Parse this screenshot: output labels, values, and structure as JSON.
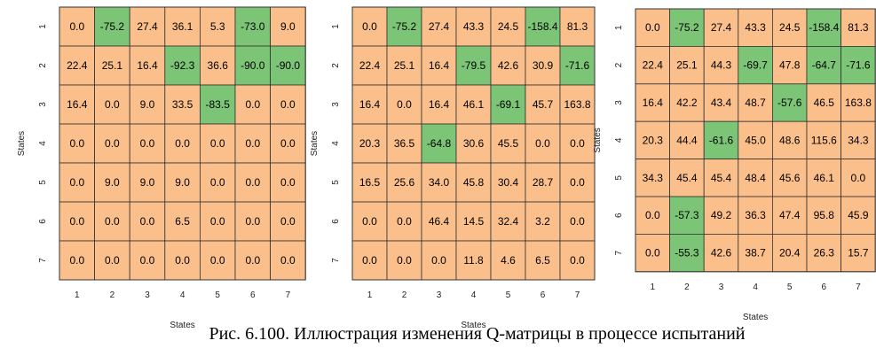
{
  "figure": {
    "caption": "Рис. 6.100. Иллюстрация изменения Q-матрицы в процессе испытаний"
  },
  "colors": {
    "positive": "#FBBF8C",
    "negative": "#7CC576",
    "grid": "#333333"
  },
  "chart_data": [
    {
      "type": "heatmap",
      "xlabel": "States",
      "ylabel": "States",
      "x_ticks": [
        "1",
        "2",
        "3",
        "4",
        "5",
        "6",
        "7"
      ],
      "y_ticks": [
        "1",
        "2",
        "3",
        "4",
        "5",
        "6",
        "7"
      ],
      "values": [
        [
          "0.0",
          "-75.2",
          "27.4",
          "36.1",
          "5.3",
          "-73.0",
          "9.0"
        ],
        [
          "22.4",
          "25.1",
          "16.4",
          "-92.3",
          "36.6",
          "-90.0",
          "-90.0"
        ],
        [
          "16.4",
          "0.0",
          "9.0",
          "33.5",
          "-83.5",
          "0.0",
          "0.0"
        ],
        [
          "0.0",
          "0.0",
          "0.0",
          "0.0",
          "0.0",
          "0.0",
          "0.0"
        ],
        [
          "0.0",
          "9.0",
          "9.0",
          "9.0",
          "0.0",
          "0.0",
          "0.0"
        ],
        [
          "0.0",
          "0.0",
          "0.0",
          "6.5",
          "0.0",
          "0.0",
          "0.0"
        ],
        [
          "0.0",
          "0.0",
          "0.0",
          "0.0",
          "0.0",
          "0.0",
          "0.0"
        ]
      ]
    },
    {
      "type": "heatmap",
      "xlabel": "States",
      "ylabel": "States",
      "x_ticks": [
        "1",
        "2",
        "3",
        "4",
        "5",
        "6",
        "7"
      ],
      "y_ticks": [
        "1",
        "2",
        "3",
        "4",
        "5",
        "6",
        "7"
      ],
      "values": [
        [
          "0.0",
          "-75.2",
          "27.4",
          "43.3",
          "24.5",
          "-158.4",
          "81.3"
        ],
        [
          "22.4",
          "25.1",
          "16.4",
          "-79.5",
          "42.6",
          "30.9",
          "-71.6"
        ],
        [
          "16.4",
          "0.0",
          "16.4",
          "46.1",
          "-69.1",
          "45.7",
          "163.8"
        ],
        [
          "20.3",
          "36.5",
          "-64.8",
          "30.6",
          "45.5",
          "0.0",
          "0.0"
        ],
        [
          "16.5",
          "25.6",
          "34.0",
          "45.8",
          "30.4",
          "28.7",
          "0.0"
        ],
        [
          "0.0",
          "0.0",
          "46.4",
          "14.5",
          "32.4",
          "3.2",
          "0.0"
        ],
        [
          "0.0",
          "0.0",
          "0.0",
          "11.8",
          "4.6",
          "6.5",
          "0.0"
        ]
      ]
    },
    {
      "type": "heatmap",
      "xlabel": "States",
      "ylabel": "States",
      "x_ticks": [
        "1",
        "2",
        "3",
        "4",
        "5",
        "6",
        "7"
      ],
      "y_ticks": [
        "1",
        "2",
        "3",
        "4",
        "5",
        "6",
        "7"
      ],
      "values": [
        [
          "0.0",
          "-75.2",
          "27.4",
          "43.3",
          "24.5",
          "-158.4",
          "81.3"
        ],
        [
          "22.4",
          "25.1",
          "44.3",
          "-69.7",
          "47.8",
          "-64.7",
          "-71.6"
        ],
        [
          "16.4",
          "42.2",
          "43.4",
          "48.7",
          "-57.6",
          "46.5",
          "163.8"
        ],
        [
          "20.3",
          "44.4",
          "-61.6",
          "45.0",
          "48.6",
          "115.6",
          "34.3"
        ],
        [
          "34.3",
          "45.4",
          "45.4",
          "48.4",
          "45.6",
          "46.1",
          "0.0"
        ],
        [
          "0.0",
          "-57.3",
          "49.2",
          "36.3",
          "47.4",
          "95.8",
          "45.9"
        ],
        [
          "0.0",
          "-55.3",
          "42.6",
          "38.7",
          "20.4",
          "26.3",
          "15.7"
        ]
      ]
    }
  ]
}
